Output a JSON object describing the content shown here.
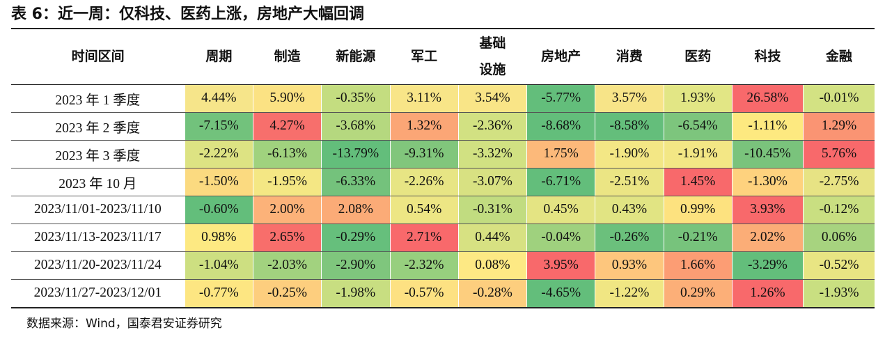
{
  "title": "表 6：近一周：仅科技、医药上涨，房地产大幅回调",
  "headers": [
    "时间区间",
    "周期",
    "制造",
    "新能源",
    "军工",
    "基础设施",
    "房地产",
    "消费",
    "医药",
    "科技",
    "金融"
  ],
  "rows": [
    {
      "period": "2023 年 1 季度",
      "values": [
        "4.44%",
        "5.90%",
        "-0.35%",
        "3.11%",
        "3.54%",
        "-5.77%",
        "3.57%",
        "1.93%",
        "26.58%",
        "-0.01%"
      ],
      "colors": [
        "#f6e58a",
        "#fbe283",
        "#c4dd80",
        "#f8e588",
        "#f9e587",
        "#63be7b",
        "#f7e488",
        "#e2e685",
        "#f8696b",
        "#d3e283"
      ]
    },
    {
      "period": "2023 年 2 季度",
      "values": [
        "-7.15%",
        "4.27%",
        "-3.68%",
        "1.32%",
        "-2.36%",
        "-8.68%",
        "-8.58%",
        "-6.54%",
        "-1.11%",
        "1.29%"
      ],
      "colors": [
        "#72c27c",
        "#f76f6c",
        "#b5d87f",
        "#fba676",
        "#d2e182",
        "#63be7b",
        "#64be7b",
        "#7dc57d",
        "#fde980",
        "#fa9473"
      ]
    },
    {
      "period": "2023 年 3 季度",
      "values": [
        "-2.22%",
        "-6.13%",
        "-13.79%",
        "-9.31%",
        "-3.32%",
        "1.75%",
        "-1.90%",
        "-1.91%",
        "-10.45%",
        "5.76%"
      ],
      "colors": [
        "#dde383",
        "#a0d27e",
        "#63be7b",
        "#81c67c",
        "#d1e182",
        "#fcb97a",
        "#f3e785",
        "#f3e785",
        "#7ac37c",
        "#f8696b"
      ]
    },
    {
      "period": "2023 年 10 月",
      "values": [
        "-1.50%",
        "-1.95%",
        "-6.33%",
        "-2.26%",
        "-3.07%",
        "-6.71%",
        "-2.51%",
        "1.45%",
        "-1.30%",
        "-2.75%"
      ],
      "colors": [
        "#fbda80",
        "#f4e784",
        "#74c27c",
        "#e7e584",
        "#d8e182",
        "#63be7b",
        "#ebe584",
        "#f8696b",
        "#fed27e",
        "#e7e384"
      ]
    },
    {
      "period": "2023/11/01-2023/11/10",
      "values": [
        "-0.60%",
        "2.00%",
        "2.08%",
        "0.54%",
        "-0.31%",
        "0.45%",
        "0.43%",
        "0.99%",
        "3.93%",
        "-0.12%"
      ],
      "colors": [
        "#63be7b",
        "#fcb279",
        "#fbab77",
        "#ede684",
        "#c1dc80",
        "#e4e483",
        "#e1e483",
        "#fde27f",
        "#f8696b",
        "#c9df81"
      ]
    },
    {
      "period": "2023/11/13-2023/11/17",
      "values": [
        "0.98%",
        "2.65%",
        "-0.29%",
        "2.71%",
        "0.44%",
        "-0.04%",
        "-0.26%",
        "-0.21%",
        "2.02%",
        "0.06%"
      ],
      "colors": [
        "#fde982",
        "#f86e6b",
        "#66bf7c",
        "#f8696b",
        "#d7e182",
        "#9fd17e",
        "#6bc07c",
        "#77c37c",
        "#fbad77",
        "#a7d37f"
      ]
    },
    {
      "period": "2023/11/20-2023/11/24",
      "values": [
        "-1.04%",
        "-2.03%",
        "-2.90%",
        "-2.32%",
        "0.08%",
        "3.95%",
        "0.93%",
        "1.66%",
        "-3.29%",
        "-0.52%"
      ],
      "colors": [
        "#cddf81",
        "#a2d27f",
        "#7fc67d",
        "#97cf7e",
        "#fde984",
        "#f8696b",
        "#fdc67d",
        "#fc9d74",
        "#63be7b",
        "#e8e583"
      ]
    },
    {
      "period": "2023/11/27-2023/12/01",
      "values": [
        "-0.77%",
        "-0.25%",
        "-1.98%",
        "-0.57%",
        "-0.28%",
        "-4.65%",
        "-1.22%",
        "0.29%",
        "1.26%",
        "-1.93%"
      ],
      "colors": [
        "#fde682",
        "#fdce7e",
        "#c8de81",
        "#fde182",
        "#fdce7e",
        "#63be7b",
        "#f0e683",
        "#fcaf78",
        "#f8696b",
        "#c9df81"
      ]
    }
  ],
  "source": "数据来源：Wind，国泰君安证券研究"
}
